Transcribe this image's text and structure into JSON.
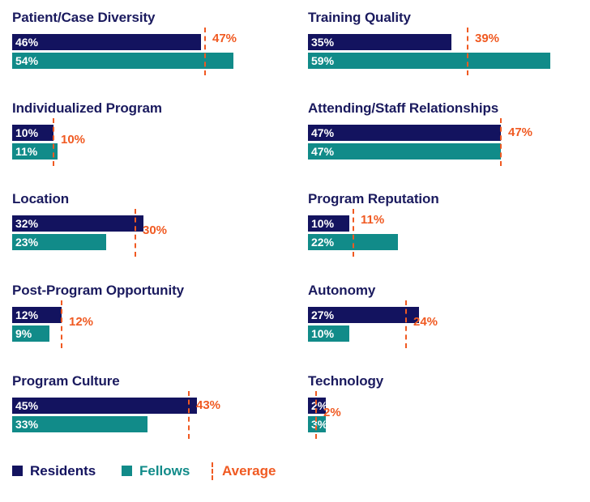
{
  "chart_data": {
    "type": "bar",
    "orientation": "horizontal",
    "series_names": [
      "Residents",
      "Fellows"
    ],
    "panels": [
      {
        "title": "Patient/Case Diversity",
        "residents": 46,
        "fellows": 54,
        "average": 47
      },
      {
        "title": "Training Quality",
        "residents": 35,
        "fellows": 59,
        "average": 39
      },
      {
        "title": "Individualized Program",
        "residents": 10,
        "fellows": 11,
        "average": 10
      },
      {
        "title": "Attending/Staff Relationships",
        "residents": 47,
        "fellows": 47,
        "average": 47
      },
      {
        "title": "Location",
        "residents": 32,
        "fellows": 23,
        "average": 30
      },
      {
        "title": "Program Reputation",
        "residents": 10,
        "fellows": 22,
        "average": 11
      },
      {
        "title": "Post-Program Opportunity",
        "residents": 12,
        "fellows": 9,
        "average": 12
      },
      {
        "title": "Autonomy",
        "residents": 27,
        "fellows": 10,
        "average": 24
      },
      {
        "title": "Program Culture",
        "residents": 45,
        "fellows": 33,
        "average": 43
      },
      {
        "title": "Technology",
        "residents": 2,
        "fellows": 3,
        "average": 2
      }
    ],
    "value_suffix": "%",
    "xlim": [
      0,
      60
    ]
  },
  "legend": {
    "residents": "Residents",
    "fellows": "Fellows",
    "average": "Average"
  },
  "colors": {
    "residents": "#13135f",
    "fellows": "#118b89",
    "average": "#f05a22",
    "title": "#1a1a5e"
  }
}
